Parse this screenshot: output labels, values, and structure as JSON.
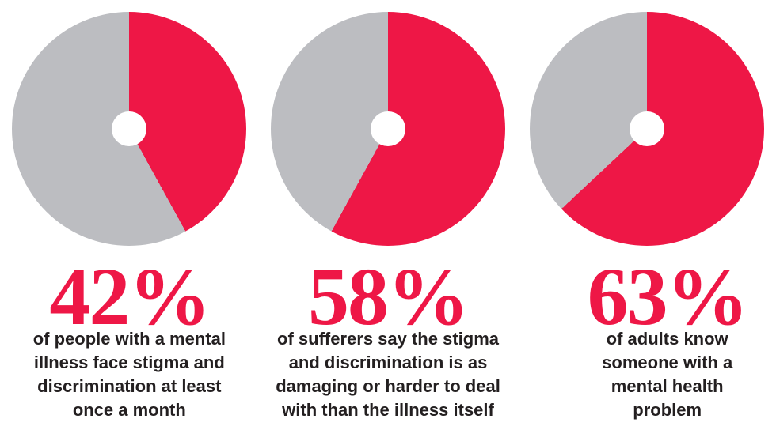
{
  "colors": {
    "slice_red": "#EE1746",
    "slice_gray": "#BCBDC1",
    "percent_text_red": "#EE1746",
    "caption_text": "#231F20",
    "background": "#FFFFFF"
  },
  "chart_data": [
    {
      "type": "pie",
      "style": "donut",
      "start_angle": "top",
      "direction": "clockwise",
      "percent": 42,
      "percent_label": "42%",
      "segments": [
        {
          "label": "affected",
          "value": 42,
          "color": "#EE1746"
        },
        {
          "label": "remainder",
          "value": 58,
          "color": "#BCBDC1"
        }
      ],
      "caption_lines": [
        "of people with a mental",
        "illness face stigma and",
        "discrimination at least",
        "once a month"
      ]
    },
    {
      "type": "pie",
      "style": "donut",
      "start_angle": "top",
      "direction": "clockwise",
      "percent": 58,
      "percent_label": "58%",
      "segments": [
        {
          "label": "affected",
          "value": 58,
          "color": "#EE1746"
        },
        {
          "label": "remainder",
          "value": 42,
          "color": "#BCBDC1"
        }
      ],
      "caption_lines": [
        "of sufferers say the stigma",
        "and discrimination is as",
        "damaging or harder to deal",
        "with than the illness itself"
      ]
    },
    {
      "type": "pie",
      "style": "donut",
      "start_angle": "top",
      "direction": "clockwise",
      "percent": 63,
      "percent_label": "63%",
      "segments": [
        {
          "label": "affected",
          "value": 63,
          "color": "#EE1746"
        },
        {
          "label": "remainder",
          "value": 37,
          "color": "#BCBDC1"
        }
      ],
      "caption_lines": [
        "of adults know",
        "someone with a",
        "mental health",
        "problem"
      ]
    }
  ]
}
